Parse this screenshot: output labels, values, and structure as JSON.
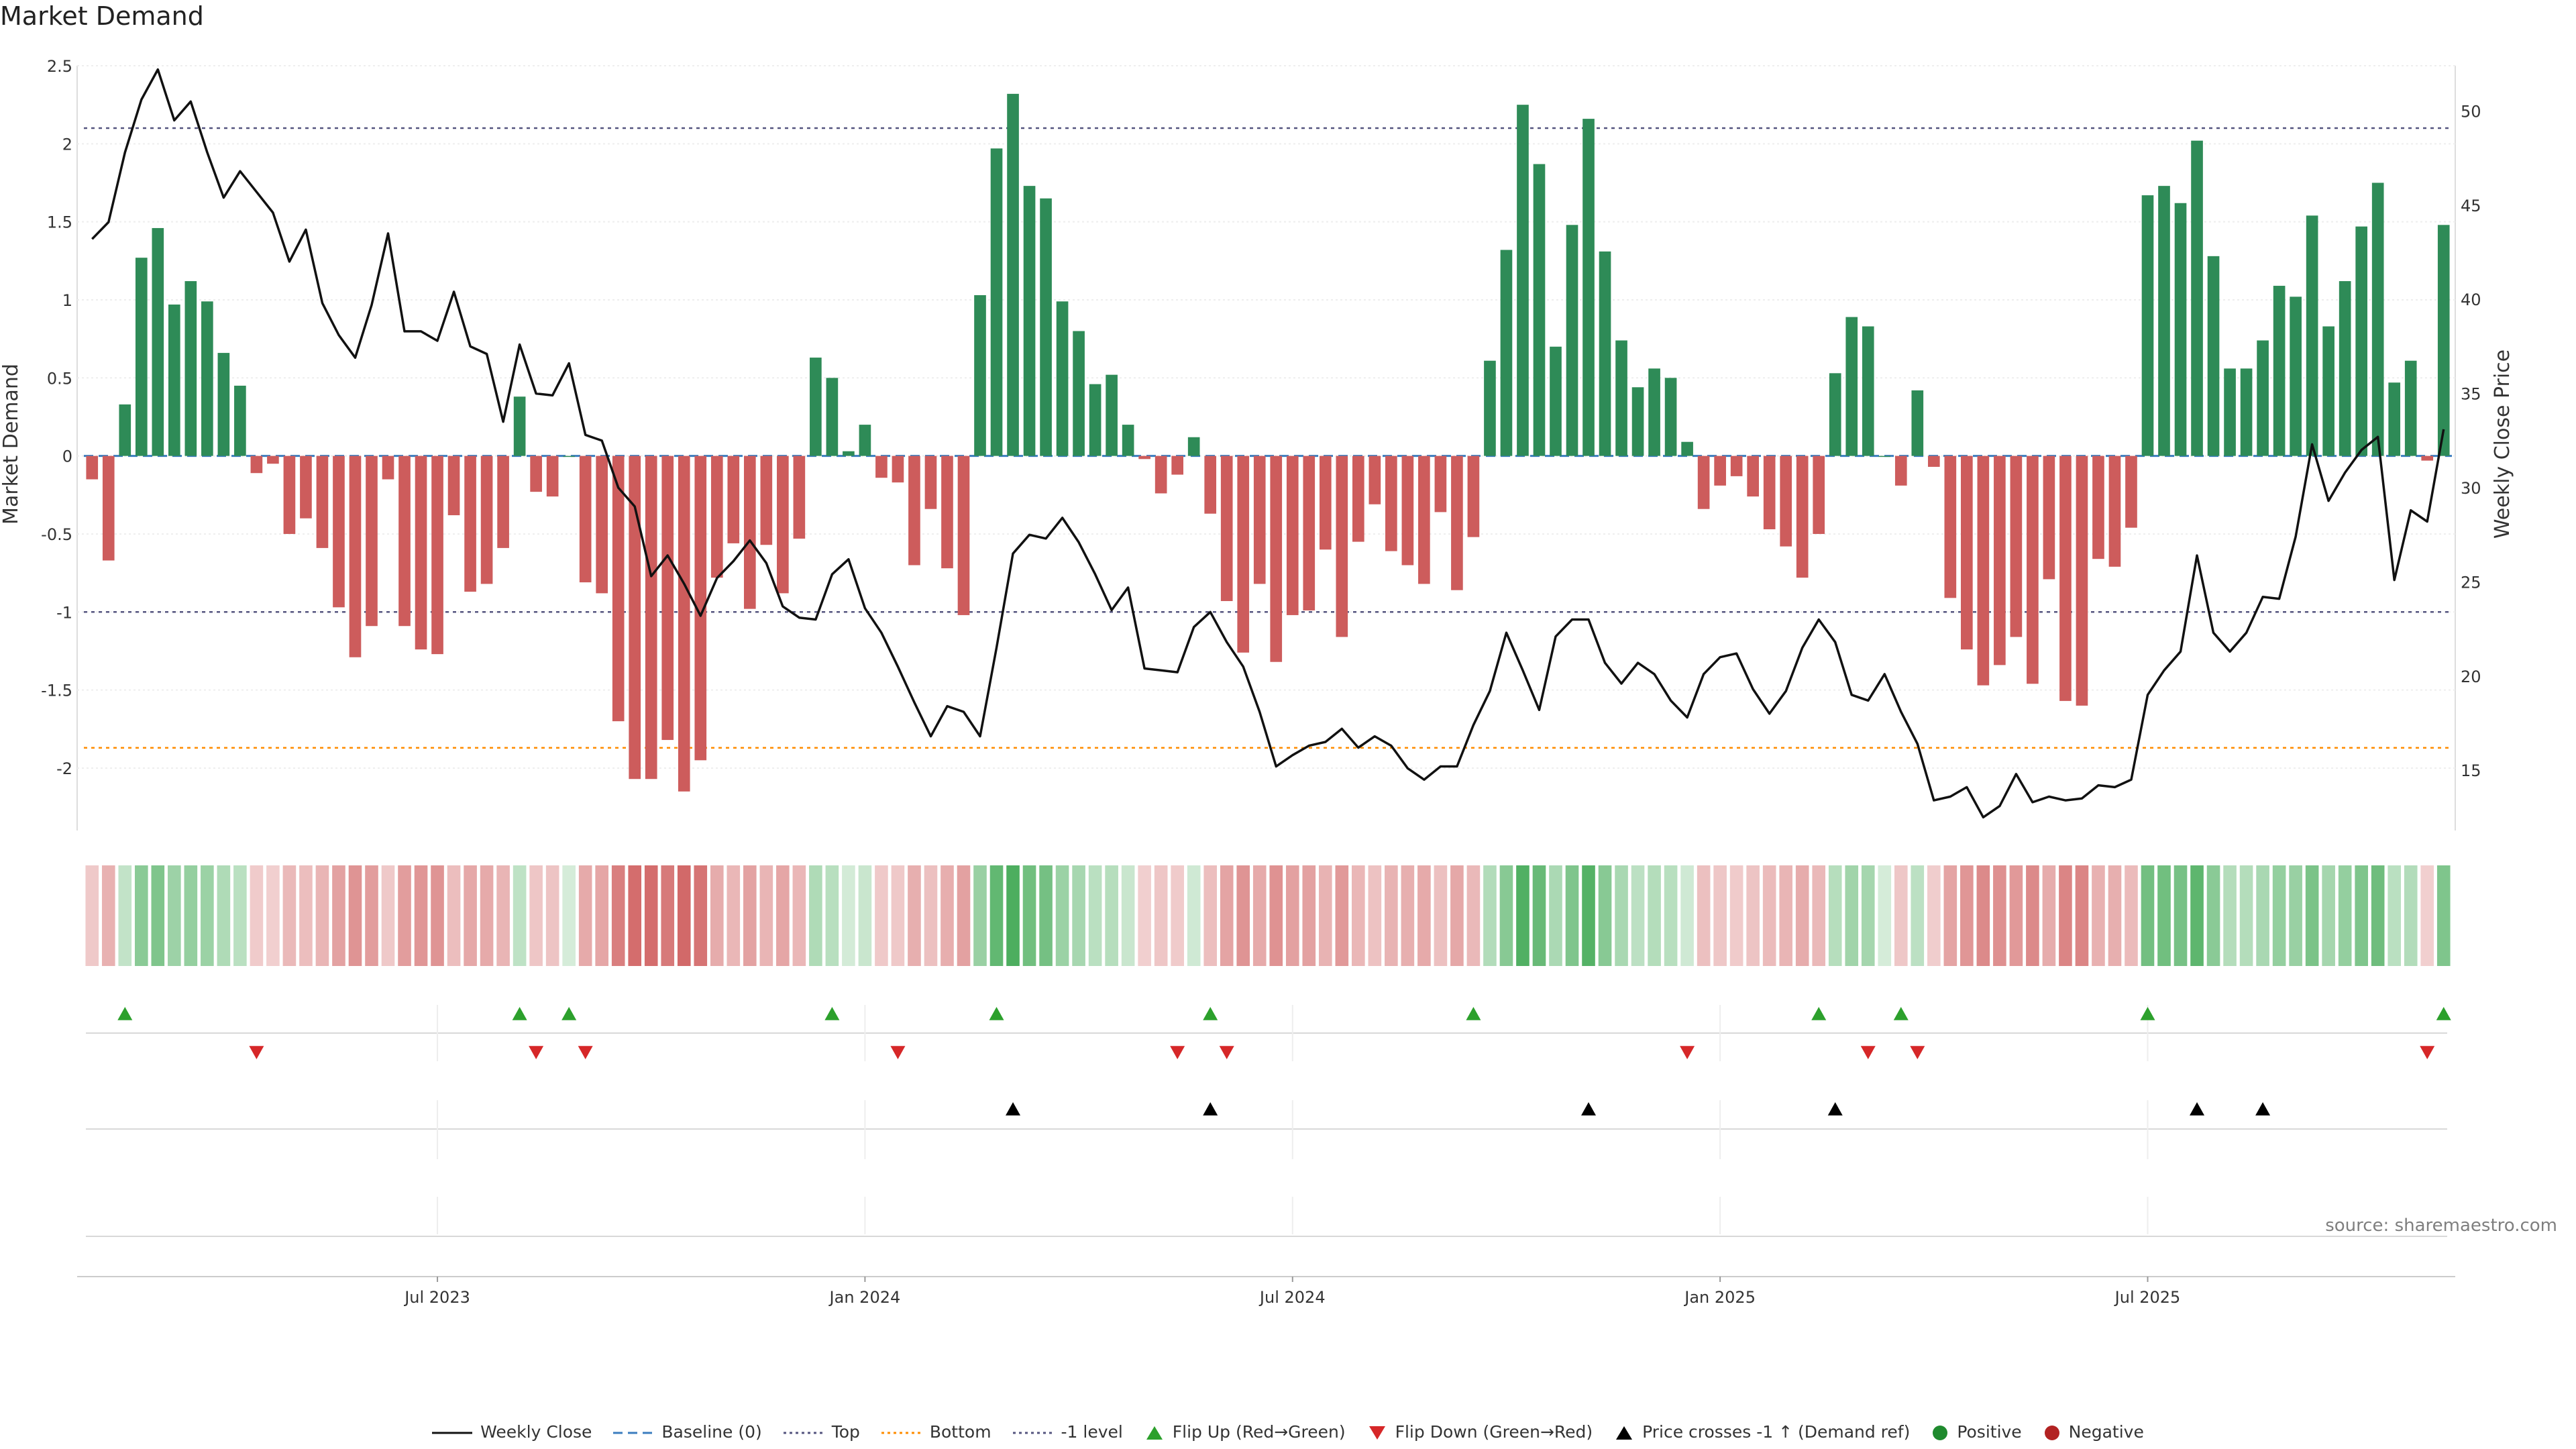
{
  "title": "Market Demand",
  "source": "source: sharemaestro.com",
  "chart_data": {
    "type": "bar",
    "xlabel": "",
    "ylabel": "Market Demand",
    "y2label": "Weekly Close Price",
    "ylim": [
      -2.4,
      2.5
    ],
    "y2lim": [
      11.8,
      52.4
    ],
    "yticks": [
      2.5,
      2,
      1.5,
      1,
      0.5,
      0,
      -0.5,
      -1,
      -1.5,
      -2
    ],
    "y2ticks": [
      50,
      45,
      40,
      35,
      30,
      25,
      20,
      15
    ],
    "xticks": [
      {
        "label": "Jul 2023",
        "index": 21
      },
      {
        "label": "Jan 2024",
        "index": 47
      },
      {
        "label": "Jul 2024",
        "index": 73
      },
      {
        "label": "Jan 2025",
        "index": 99
      },
      {
        "label": "Jul 2025",
        "index": 125
      }
    ],
    "reference_lines": {
      "top": 2.1,
      "bottom": -1.87,
      "minus_one": -1.0,
      "baseline": 0
    },
    "demand": [
      -0.15,
      -0.67,
      0.33,
      1.27,
      1.46,
      0.97,
      1.12,
      0.99,
      0.66,
      0.45,
      -0.11,
      -0.05,
      -0.5,
      -0.4,
      -0.59,
      -0.97,
      -1.29,
      -1.09,
      -0.15,
      -1.09,
      -1.24,
      -1.27,
      -0.38,
      -0.87,
      -0.82,
      -0.59,
      0.38,
      -0.23,
      -0.26,
      0.0,
      -0.81,
      -0.88,
      -1.7,
      -2.07,
      -2.07,
      -1.82,
      -2.15,
      -1.95,
      -0.78,
      -0.56,
      -0.98,
      -0.57,
      -0.88,
      -0.53,
      0.63,
      0.5,
      0.03,
      0.2,
      -0.14,
      -0.17,
      -0.7,
      -0.34,
      -0.72,
      -1.02,
      1.03,
      1.97,
      2.32,
      1.73,
      1.65,
      0.99,
      0.8,
      0.46,
      0.52,
      0.2,
      -0.02,
      -0.24,
      -0.12,
      0.12,
      -0.37,
      -0.93,
      -1.26,
      -0.82,
      -1.32,
      -1.02,
      -0.99,
      -0.6,
      -1.16,
      -0.55,
      -0.31,
      -0.61,
      -0.7,
      -0.82,
      -0.36,
      -0.86,
      -0.52,
      0.61,
      1.32,
      2.25,
      1.87,
      0.7,
      1.48,
      2.16,
      1.31,
      0.74,
      0.44,
      0.56,
      0.5,
      0.09,
      -0.34,
      -0.19,
      -0.13,
      -0.26,
      -0.47,
      -0.58,
      -0.78,
      -0.5,
      0.53,
      0.89,
      0.83,
      0.0,
      -0.19,
      0.42,
      -0.07,
      -0.91,
      -1.24,
      -1.47,
      -1.34,
      -1.16,
      -1.46,
      -0.79,
      -1.57,
      -1.6,
      -0.66,
      -0.71,
      -0.46,
      1.67,
      1.73,
      1.62,
      2.02,
      1.28,
      0.56,
      0.56,
      0.74,
      1.09,
      1.02,
      1.54,
      0.83,
      1.12,
      1.47,
      1.75,
      0.47,
      0.61,
      -0.03,
      1.48
    ],
    "close": [
      43.2,
      44.1,
      47.8,
      50.6,
      52.2,
      49.5,
      50.5,
      47.8,
      45.4,
      46.8,
      45.7,
      44.6,
      42.0,
      43.7,
      39.8,
      38.1,
      36.9,
      39.7,
      43.5,
      38.3,
      38.3,
      37.8,
      40.4,
      37.5,
      37.1,
      33.5,
      37.6,
      35.0,
      34.9,
      36.6,
      32.8,
      32.5,
      30.0,
      29.0,
      25.3,
      26.4,
      24.9,
      23.2,
      25.2,
      26.1,
      27.2,
      26.0,
      23.7,
      23.1,
      23.0,
      25.4,
      26.2,
      23.6,
      22.3,
      20.5,
      18.6,
      16.8,
      18.4,
      18.1,
      16.8,
      21.5,
      26.5,
      27.5,
      27.3,
      28.4,
      27.1,
      25.4,
      23.5,
      24.7,
      20.4,
      20.3,
      20.2,
      22.6,
      23.4,
      21.8,
      20.5,
      18.1,
      15.2,
      15.8,
      16.3,
      16.5,
      17.2,
      16.2,
      16.8,
      16.3,
      15.1,
      14.5,
      15.2,
      15.2,
      17.4,
      19.2,
      22.3,
      20.3,
      18.2,
      22.1,
      23.0,
      23.0,
      20.7,
      19.6,
      20.7,
      20.1,
      18.7,
      17.8,
      20.1,
      21.0,
      21.2,
      19.3,
      18.0,
      19.2,
      21.5,
      23.0,
      21.8,
      19.0,
      18.7,
      20.1,
      18.1,
      16.4,
      13.4,
      13.6,
      14.1,
      12.5,
      13.1,
      14.8,
      13.3,
      13.6,
      13.4,
      13.5,
      14.2,
      14.1,
      14.5,
      19.0,
      20.3,
      21.3,
      26.4,
      22.3,
      21.3,
      22.3,
      24.2,
      24.1,
      27.4,
      32.3,
      29.3,
      30.8,
      32.0,
      32.7,
      25.1,
      28.8,
      28.2,
      33.1
    ]
  },
  "strips": {
    "flip_up": [
      2,
      26,
      29,
      45,
      55,
      68,
      84,
      105,
      110,
      125,
      143
    ],
    "flip_down": [
      10,
      27,
      30,
      49,
      66,
      69,
      97,
      108,
      111,
      142
    ],
    "price_cross": [
      56,
      68,
      91,
      106,
      128,
      132
    ]
  },
  "legend": {
    "weekly_close": "Weekly Close",
    "baseline": "Baseline (0)",
    "top": "Top",
    "bottom": "Bottom",
    "minus_one": "-1 level",
    "flip_up": "Flip Up (Red→Green)",
    "flip_down": "Flip Down (Green→Red)",
    "price_cross": "Price crosses -1 ↑ (Demand ref)",
    "positive": "Positive",
    "negative": "Negative"
  },
  "colors": {
    "positive": "#2e8b57",
    "negative": "#cd5c5c",
    "line": "#111111",
    "baseline": "#3b7dbf",
    "top": "#55557f",
    "bottom": "#ff8c00",
    "minus_one": "#55557f",
    "flip_up": "#2ca02c",
    "flip_down": "#d62728",
    "cross": "#000000",
    "legend_positive": "#1f8a2e",
    "legend_negative": "#b22222"
  }
}
